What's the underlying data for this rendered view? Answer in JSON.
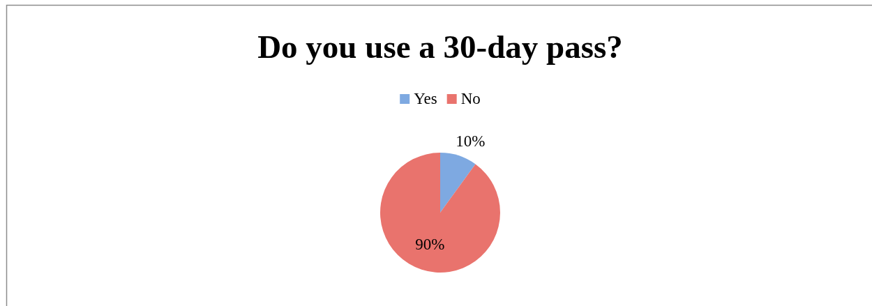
{
  "chart_data": {
    "type": "pie",
    "title": "Do you use a 30-day pass?",
    "categories": [
      "Yes",
      "No"
    ],
    "values": [
      10,
      90
    ],
    "colors": [
      "#7ea9e1",
      "#e9736d"
    ],
    "value_labels": [
      "10%",
      "90%"
    ],
    "legend": "top"
  }
}
